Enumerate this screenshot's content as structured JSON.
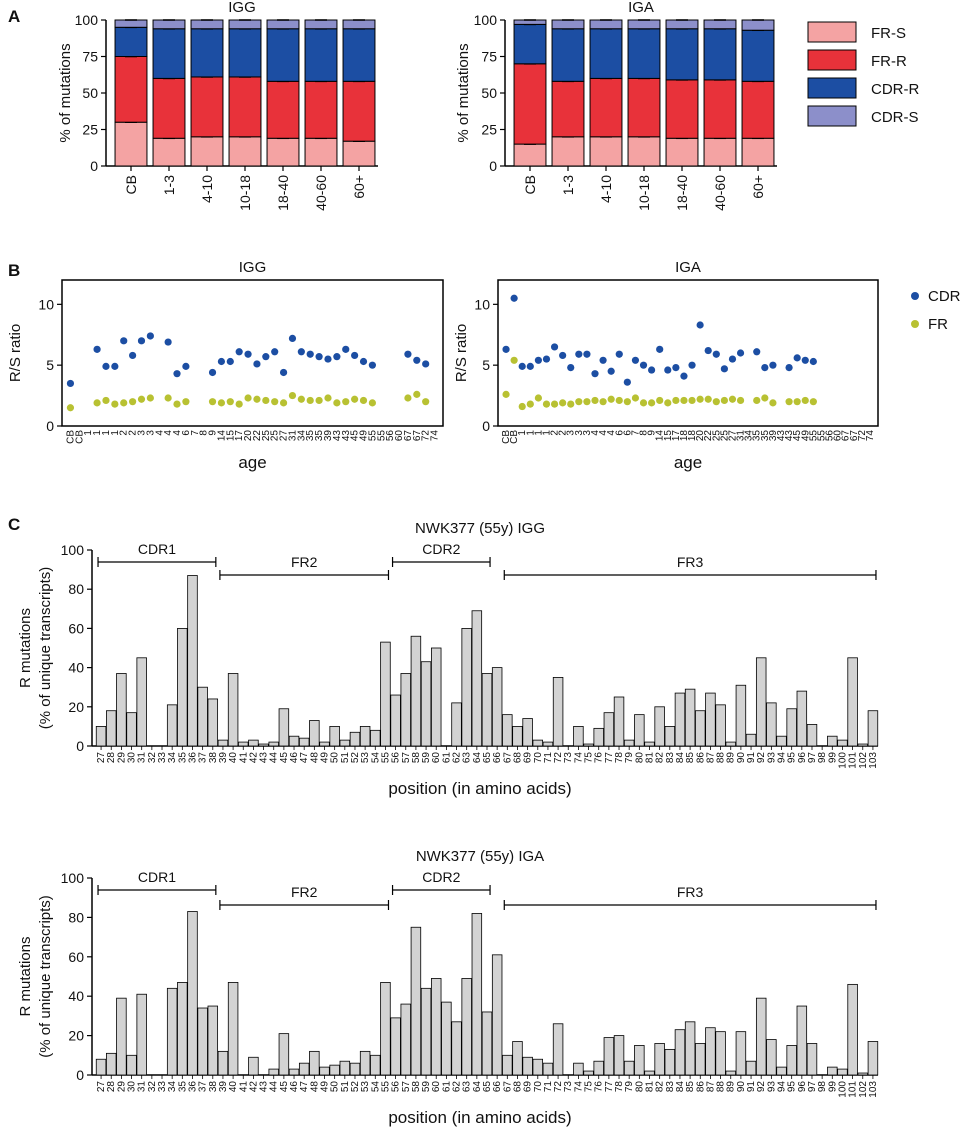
{
  "panel_labels": [
    "A",
    "B",
    "C"
  ],
  "legend_A": {
    "items": [
      {
        "name": "FR-S",
        "color": "#f4a3a3"
      },
      {
        "name": "FR-R",
        "color": "#e8323a"
      },
      {
        "name": "CDR-R",
        "color": "#1c4ea3"
      },
      {
        "name": "CDR-S",
        "color": "#8c8fca"
      }
    ]
  },
  "legend_B": {
    "items": [
      {
        "name": "CDR",
        "color": "#1c4ea3"
      },
      {
        "name": "FR",
        "color": "#b8c132"
      }
    ]
  },
  "chart_data": [
    {
      "id": "A-IGG",
      "type": "bar",
      "stacked": true,
      "title": "IGG",
      "ylabel": "% of mutations",
      "ylim": [
        0,
        100
      ],
      "yticks": [
        0,
        25,
        50,
        75,
        100
      ],
      "categories": [
        "CB",
        "1-3",
        "4-10",
        "10-18",
        "18-40",
        "40-60",
        "60+"
      ],
      "series": [
        {
          "name": "FR-S",
          "values": [
            30,
            19,
            20,
            20,
            19,
            19,
            17
          ]
        },
        {
          "name": "FR-R",
          "values": [
            45,
            41,
            41,
            41,
            39,
            39,
            41
          ]
        },
        {
          "name": "CDR-R",
          "values": [
            20,
            34,
            33,
            33,
            36,
            36,
            36
          ]
        },
        {
          "name": "CDR-S",
          "values": [
            5,
            6,
            6,
            6,
            6,
            6,
            6
          ]
        }
      ]
    },
    {
      "id": "A-IGA",
      "type": "bar",
      "stacked": true,
      "title": "IGA",
      "ylabel": "% of mutations",
      "ylim": [
        0,
        100
      ],
      "yticks": [
        0,
        25,
        50,
        75,
        100
      ],
      "categories": [
        "CB",
        "1-3",
        "4-10",
        "10-18",
        "18-40",
        "40-60",
        "60+"
      ],
      "series": [
        {
          "name": "FR-S",
          "values": [
            15,
            20,
            20,
            20,
            19,
            19,
            19
          ]
        },
        {
          "name": "FR-R",
          "values": [
            55,
            38,
            40,
            40,
            40,
            40,
            39
          ]
        },
        {
          "name": "CDR-R",
          "values": [
            27,
            36,
            34,
            34,
            35,
            35,
            35
          ]
        },
        {
          "name": "CDR-S",
          "values": [
            3,
            6,
            6,
            6,
            6,
            6,
            7
          ]
        }
      ]
    },
    {
      "id": "B-IGG",
      "type": "scatter",
      "title": "IGG",
      "ylabel": "R/S ratio",
      "xlabel": "age",
      "ylim": [
        0,
        12
      ],
      "yticks": [
        0,
        5,
        10
      ],
      "categories": [
        "CB",
        "CB",
        "1",
        "1",
        "1",
        "1",
        "2",
        "2",
        "3",
        "3",
        "4",
        "4",
        "4",
        "6",
        "7",
        "8",
        "9",
        "14",
        "15",
        "17",
        "20",
        "22",
        "25",
        "25",
        "27",
        "31",
        "34",
        "35",
        "35",
        "39",
        "43",
        "43",
        "45",
        "49",
        "55",
        "55",
        "56",
        "60",
        "67",
        "67",
        "72",
        "74"
      ],
      "series": [
        {
          "name": "CDR",
          "values": [
            3.5,
            null,
            null,
            6.3,
            4.9,
            4.9,
            7.0,
            5.8,
            7.0,
            7.4,
            null,
            6.9,
            4.3,
            4.9,
            null,
            null,
            4.4,
            5.3,
            5.3,
            6.1,
            5.9,
            5.1,
            5.7,
            6.1,
            4.4,
            7.2,
            6.1,
            5.9,
            5.7,
            5.5,
            5.7,
            6.3,
            5.8,
            5.3,
            5.0,
            null,
            null,
            null,
            5.9,
            5.4,
            5.1,
            null
          ]
        },
        {
          "name": "FR",
          "values": [
            1.5,
            null,
            null,
            1.9,
            2.1,
            1.8,
            1.9,
            2.0,
            2.2,
            2.3,
            null,
            2.3,
            1.8,
            2.0,
            null,
            null,
            2.0,
            1.9,
            2.0,
            1.8,
            2.3,
            2.2,
            2.1,
            2.0,
            1.9,
            2.5,
            2.2,
            2.1,
            2.1,
            2.3,
            1.9,
            2.0,
            2.2,
            2.1,
            1.9,
            null,
            null,
            null,
            2.3,
            2.6,
            2.0,
            null
          ]
        }
      ]
    },
    {
      "id": "B-IGA",
      "type": "scatter",
      "title": "IGA",
      "ylabel": "R/S ratio",
      "xlabel": "age",
      "ylim": [
        0,
        12
      ],
      "yticks": [
        0,
        5,
        10
      ],
      "categories": [
        "CB",
        "CB",
        "1",
        "1",
        "1",
        "1",
        "2",
        "2",
        "3",
        "3",
        "3",
        "4",
        "4",
        "4",
        "6",
        "6",
        "7",
        "8",
        "9",
        "14",
        "15",
        "17",
        "18",
        "18",
        "20",
        "22",
        "25",
        "25",
        "27",
        "31",
        "34",
        "35",
        "35",
        "39",
        "43",
        "43",
        "45",
        "49",
        "55",
        "55",
        "56",
        "60",
        "67",
        "67",
        "72",
        "74"
      ],
      "series": [
        {
          "name": "CDR",
          "values": [
            6.3,
            10.5,
            4.9,
            4.9,
            5.4,
            5.5,
            6.5,
            5.8,
            4.8,
            5.9,
            5.9,
            4.3,
            5.4,
            4.5,
            5.9,
            3.6,
            5.4,
            5.0,
            4.6,
            6.3,
            4.6,
            4.8,
            4.1,
            5.0,
            8.3,
            6.2,
            5.9,
            4.7,
            5.5,
            6.0,
            null,
            6.1,
            4.8,
            5.0,
            null,
            4.8,
            5.6,
            5.4,
            5.3,
            null,
            null,
            null,
            null,
            null,
            null,
            null
          ]
        },
        {
          "name": "FR",
          "values": [
            2.6,
            5.4,
            1.6,
            1.8,
            2.3,
            1.8,
            1.8,
            1.9,
            1.8,
            2.0,
            2.0,
            2.1,
            2.0,
            2.2,
            2.1,
            2.0,
            2.3,
            1.9,
            1.9,
            2.1,
            1.9,
            2.1,
            2.1,
            2.1,
            2.2,
            2.2,
            2.0,
            2.1,
            2.2,
            2.1,
            null,
            2.1,
            2.3,
            1.9,
            null,
            2.0,
            2.0,
            2.1,
            2.0,
            null,
            null,
            null,
            null,
            null,
            null,
            null
          ]
        }
      ]
    },
    {
      "id": "C-IGG",
      "type": "bar",
      "title": "NWK377 (55y) IGG",
      "ylabel": "R mutations",
      "ylabel2": "(% of unique transcripts)",
      "xlabel": "position (in amino acids)",
      "ylim": [
        0,
        100
      ],
      "yticks": [
        0,
        20,
        40,
        60,
        80,
        100
      ],
      "categories": [
        "27",
        "28",
        "29",
        "30",
        "31",
        "32",
        "33",
        "34",
        "35",
        "36",
        "37",
        "38",
        "39",
        "40",
        "41",
        "42",
        "43",
        "44",
        "45",
        "46",
        "47",
        "48",
        "49",
        "50",
        "51",
        "52",
        "53",
        "54",
        "55",
        "56",
        "57",
        "58",
        "59",
        "60",
        "61",
        "62",
        "63",
        "64",
        "65",
        "66",
        "67",
        "68",
        "69",
        "70",
        "71",
        "72",
        "73",
        "74",
        "75",
        "76",
        "77",
        "78",
        "79",
        "80",
        "81",
        "82",
        "83",
        "84",
        "85",
        "86",
        "87",
        "88",
        "89",
        "90",
        "91",
        "92",
        "93",
        "94",
        "95",
        "96",
        "97",
        "98",
        "99",
        "100",
        "101",
        "102",
        "103"
      ],
      "values": [
        10,
        18,
        37,
        17,
        45,
        0,
        0,
        21,
        60,
        87,
        30,
        24,
        3,
        37,
        2,
        3,
        1,
        2,
        19,
        5,
        4,
        13,
        2,
        10,
        3,
        7,
        10,
        8,
        53,
        26,
        37,
        56,
        43,
        50,
        0,
        22,
        60,
        69,
        37,
        40,
        16,
        10,
        14,
        3,
        2,
        35,
        0,
        10,
        1,
        9,
        17,
        25,
        3,
        16,
        2,
        20,
        10,
        27,
        29,
        18,
        27,
        21,
        2,
        31,
        6,
        45,
        22,
        5,
        19,
        28,
        11,
        0,
        5,
        3,
        45,
        1,
        18
      ],
      "brackets": [
        {
          "label": "CDR1",
          "from": "27",
          "to": "38"
        },
        {
          "label": "FR2",
          "from": "39",
          "to": "55"
        },
        {
          "label": "CDR2",
          "from": "56",
          "to": "65"
        },
        {
          "label": "FR3",
          "from": "67",
          "to": "103"
        }
      ]
    },
    {
      "id": "C-IGA",
      "type": "bar",
      "title": "NWK377 (55y) IGA",
      "ylabel": "R mutations",
      "ylabel2": "(% of unique transcripts)",
      "xlabel": "position (in amino acids)",
      "ylim": [
        0,
        100
      ],
      "yticks": [
        0,
        20,
        40,
        60,
        80,
        100
      ],
      "categories": [
        "27",
        "28",
        "29",
        "30",
        "31",
        "32",
        "33",
        "34",
        "35",
        "36",
        "37",
        "38",
        "39",
        "40",
        "41",
        "42",
        "43",
        "44",
        "45",
        "46",
        "47",
        "48",
        "49",
        "50",
        "51",
        "52",
        "53",
        "54",
        "55",
        "56",
        "57",
        "58",
        "59",
        "60",
        "61",
        "62",
        "63",
        "64",
        "65",
        "66",
        "67",
        "68",
        "69",
        "70",
        "71",
        "72",
        "73",
        "74",
        "75",
        "76",
        "77",
        "78",
        "79",
        "80",
        "81",
        "82",
        "83",
        "84",
        "85",
        "86",
        "87",
        "88",
        "89",
        "90",
        "91",
        "92",
        "93",
        "94",
        "95",
        "96",
        "97",
        "98",
        "99",
        "100",
        "101",
        "102",
        "103"
      ],
      "values": [
        8,
        11,
        39,
        10,
        41,
        0,
        0,
        44,
        47,
        83,
        34,
        35,
        12,
        47,
        0,
        9,
        0,
        3,
        21,
        3,
        6,
        12,
        4,
        5,
        7,
        6,
        12,
        10,
        47,
        29,
        36,
        75,
        44,
        49,
        37,
        27,
        49,
        82,
        32,
        61,
        10,
        17,
        9,
        8,
        6,
        26,
        0,
        6,
        2,
        7,
        19,
        20,
        7,
        15,
        2,
        16,
        13,
        23,
        27,
        16,
        24,
        22,
        2,
        22,
        7,
        39,
        18,
        4,
        15,
        35,
        16,
        0,
        4,
        3,
        46,
        1,
        17
      ],
      "brackets": [
        {
          "label": "CDR1",
          "from": "27",
          "to": "38"
        },
        {
          "label": "FR2",
          "from": "39",
          "to": "55"
        },
        {
          "label": "CDR2",
          "from": "56",
          "to": "65"
        },
        {
          "label": "FR3",
          "from": "67",
          "to": "103"
        }
      ]
    }
  ]
}
